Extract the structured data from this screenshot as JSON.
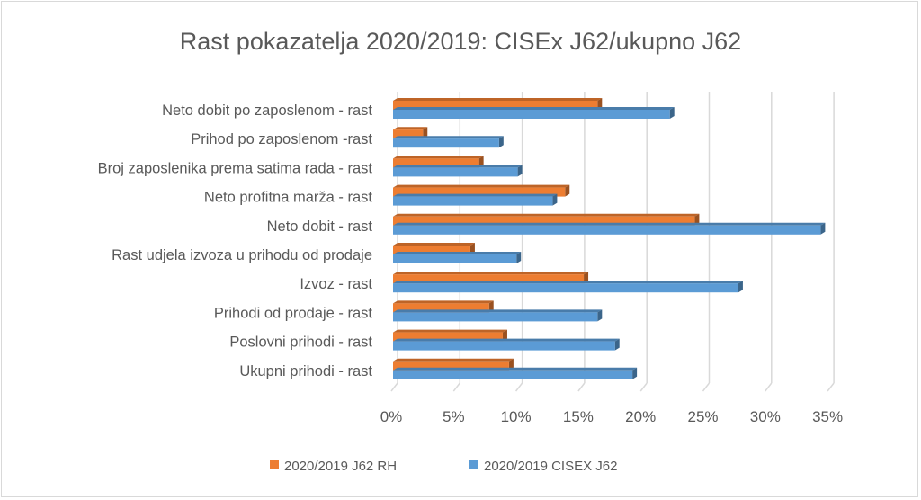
{
  "chart_data": {
    "type": "bar",
    "orientation": "horizontal",
    "style": "3d-clustered",
    "title": "Rast pokazatelja 2020/2019: CISEx J62/ukupno J62",
    "xlabel": "",
    "ylabel": "",
    "xlim": [
      0,
      35
    ],
    "x_ticks": [
      "0%",
      "5%",
      "10%",
      "15%",
      "20%",
      "25%",
      "30%",
      "35%"
    ],
    "grid": "vertical",
    "legend_position": "bottom",
    "categories": [
      "Neto dobit po zaposlenom - rast",
      "Prihod po zaposlenom -rast",
      "Broj zaposlenika prema satima rada - rast",
      "Neto profitna marža - rast",
      "Neto dobit - rast",
      "Rast udjela izvoza u prihodu od prodaje",
      "Izvoz - rast",
      "Prihodi od prodaje - rast",
      "Poslovni prihodi - rast",
      "Ukupni prihodi - rast"
    ],
    "series": [
      {
        "name": "2020/2019 J62 RH",
        "color": "#ED7D31",
        "values": [
          16.4,
          2.4,
          6.9,
          13.8,
          24.2,
          6.2,
          15.3,
          7.7,
          8.8,
          9.3
        ]
      },
      {
        "name": "2020/2019 CISEX J62",
        "color": "#5B9BD5",
        "values": [
          22.2,
          8.5,
          10.0,
          12.8,
          34.3,
          9.9,
          27.7,
          16.4,
          17.8,
          19.2
        ]
      }
    ]
  }
}
